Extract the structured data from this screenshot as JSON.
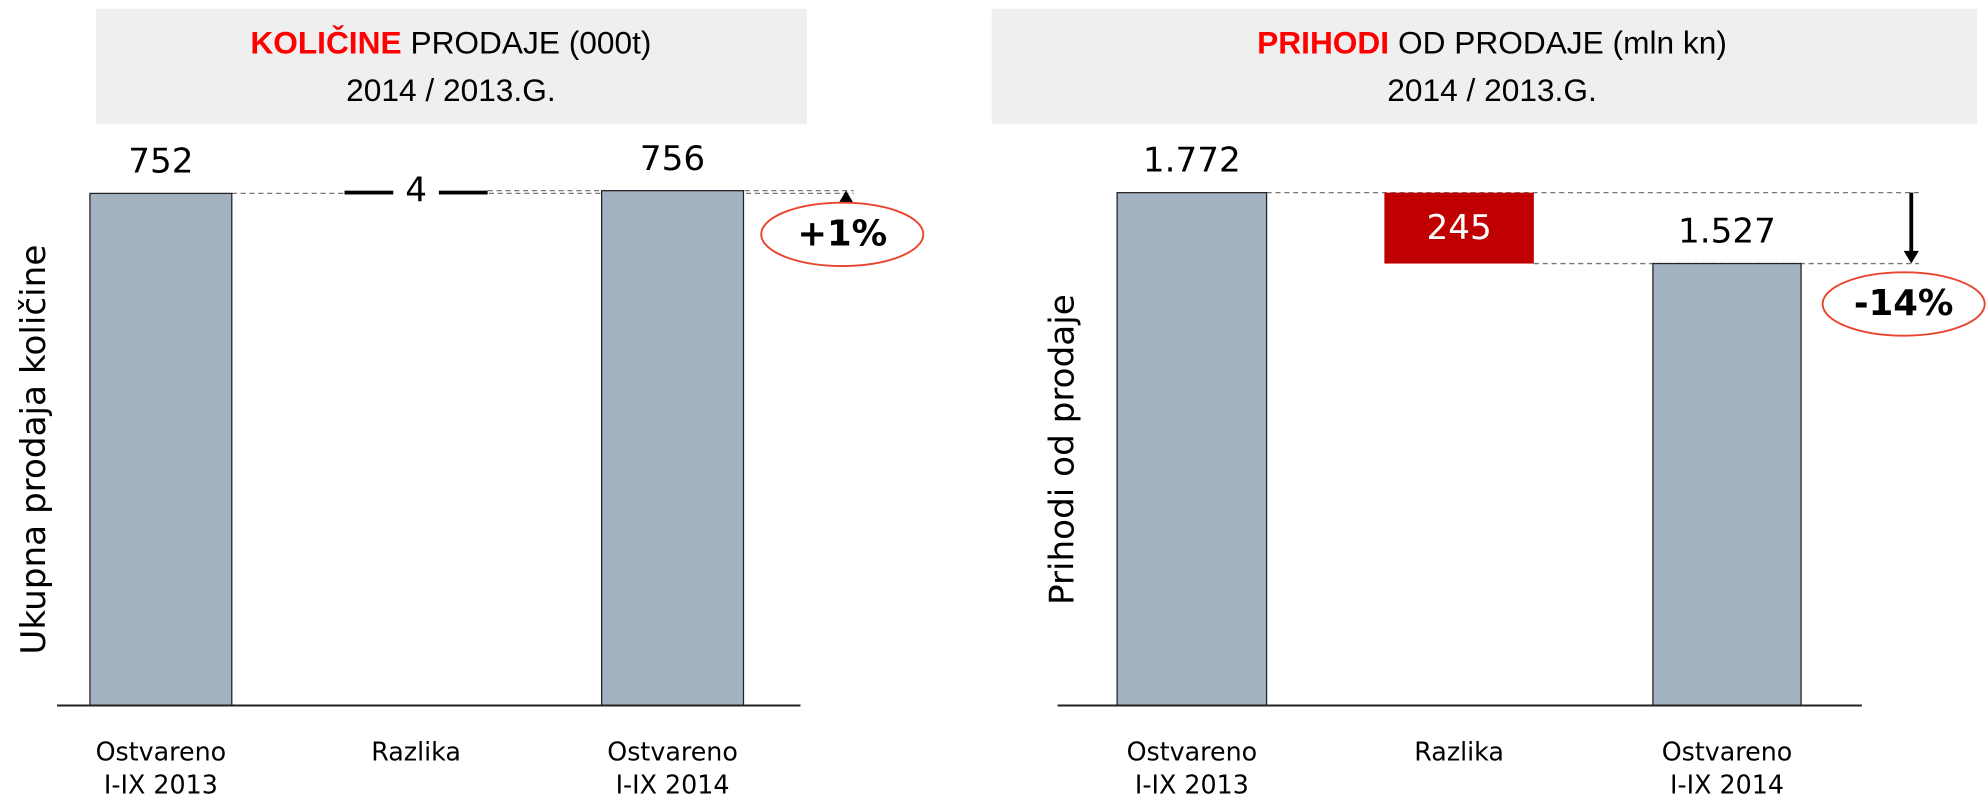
{
  "chart_data": [
    {
      "type": "waterfall",
      "title_highlight": "KOLIČINE",
      "title": "PRODAJE (000t)",
      "subtitle": "2014 / 2013.G.",
      "ylabel": "Ukupna prodaja količine",
      "categories": [
        [
          "Ostvareno",
          "I-IX 2013"
        ],
        [
          "Razlika"
        ],
        [
          "Ostvareno",
          "I-IX 2014"
        ]
      ],
      "values": [
        752,
        4,
        756
      ],
      "color": "#a3b2c1",
      "delta_color": "#000000",
      "highlight_color": "#ff0000",
      "annotation": "+1%",
      "annotation_color": "#e8452f",
      "ylim": [
        0,
        850
      ]
    },
    {
      "type": "waterfall",
      "title_highlight": "PRIHODI",
      "title": "OD PRODAJE (mln kn)",
      "subtitle": "2014 / 2013.G.",
      "ylabel": "Prihodi od prodaje",
      "categories": [
        [
          "Ostvareno",
          "I-IX 2013"
        ],
        [
          "Razlika"
        ],
        [
          "Ostvareno",
          "I-IX 2014"
        ]
      ],
      "values": [
        1772,
        -245,
        1527
      ],
      "value_labels": [
        "1.772",
        "245",
        "1.527"
      ],
      "color": "#a3b2c1",
      "delta_color": "#c00000",
      "highlight_color": "#ff0000",
      "annotation": "-14%",
      "annotation_color": "#e8452f",
      "ylim": [
        0,
        2000
      ]
    }
  ]
}
